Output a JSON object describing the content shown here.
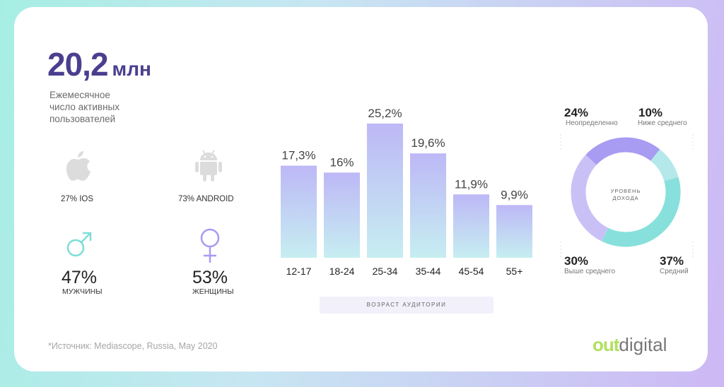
{
  "stats": {
    "total_value": "20,2",
    "total_unit": "млн",
    "subtitle_lines": [
      "Ежемесячное",
      "число активных",
      "пользователей"
    ]
  },
  "platforms": {
    "ios_label": "27% IOS",
    "android_label": "73% ANDROID"
  },
  "gender": {
    "male_pct": "47%",
    "male_label": "МУЖЧИНЫ",
    "female_pct": "53%",
    "female_label": "ЖЕНЩИНЫ"
  },
  "icons": [
    "apple-icon",
    "android-icon",
    "male-symbol-icon",
    "female-symbol-icon"
  ],
  "colors": {
    "title": "#4a3f8f",
    "bar_top": "#bdb8f6",
    "bar_bottom": "#c6eef1",
    "donut_purple": "#a79bf2",
    "donut_teal": "#87e0dc",
    "donut_lavender": "#c9c1f6",
    "logo_green": "#b0e060"
  },
  "source": "*Источник: Mediascope, Russia, May 2020",
  "logo": {
    "part1": "out",
    "part2": "digital"
  },
  "chart_data": [
    {
      "type": "bar",
      "title": "",
      "xlabel": "ВОЗРАСТ АУДИТОРИИ",
      "ylabel": "",
      "categories": [
        "12-17",
        "18-24",
        "25-34",
        "35-44",
        "45-54",
        "55+"
      ],
      "values": [
        17.3,
        16,
        25.2,
        19.6,
        11.9,
        9.9
      ],
      "value_labels": [
        "17,3%",
        "16%",
        "25,2%",
        "19,6%",
        "11,9%",
        "9,9%"
      ],
      "ylim": [
        0,
        25.2
      ]
    },
    {
      "type": "pie",
      "donut": true,
      "center_label": [
        "УРОВЕНЬ",
        "ДОХОДА"
      ],
      "slices": [
        {
          "label": "Неопределенно",
          "value": 24,
          "pct": "24%",
          "color": "#a79bf2"
        },
        {
          "label": "Ниже среднего",
          "value": 10,
          "pct": "10%",
          "color": "#b4e8ea"
        },
        {
          "label": "Средний",
          "value": 37,
          "pct": "37%",
          "color": "#87e0dc"
        },
        {
          "label": "Выше среднего",
          "value": 30,
          "pct": "30%",
          "color": "#c9c1f6"
        }
      ]
    }
  ]
}
